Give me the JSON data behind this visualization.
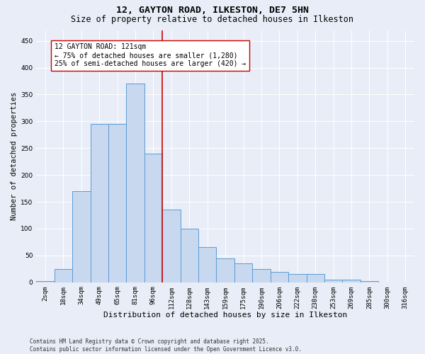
{
  "title": "12, GAYTON ROAD, ILKESTON, DE7 5HN",
  "subtitle": "Size of property relative to detached houses in Ilkeston",
  "xlabel": "Distribution of detached houses by size in Ilkeston",
  "ylabel": "Number of detached properties",
  "categories": [
    "2sqm",
    "18sqm",
    "34sqm",
    "49sqm",
    "65sqm",
    "81sqm",
    "96sqm",
    "112sqm",
    "128sqm",
    "143sqm",
    "159sqm",
    "175sqm",
    "190sqm",
    "206sqm",
    "222sqm",
    "238sqm",
    "253sqm",
    "269sqm",
    "285sqm",
    "300sqm",
    "316sqm"
  ],
  "values": [
    2,
    25,
    170,
    295,
    295,
    370,
    240,
    135,
    100,
    65,
    45,
    35,
    25,
    20,
    15,
    15,
    5,
    5,
    2,
    0,
    0
  ],
  "bar_color": "#c8d8ee",
  "bar_edge_color": "#5b9bd5",
  "bar_linewidth": 0.7,
  "annotation_text": "12 GAYTON ROAD: 121sqm\n← 75% of detached houses are smaller (1,280)\n25% of semi-detached houses are larger (420) →",
  "annotation_box_color": "#ffffff",
  "annotation_box_edgecolor": "#cc0000",
  "vline_x_index": 7,
  "vline_color": "#cc0000",
  "vline_linewidth": 1.2,
  "ylim": [
    0,
    470
  ],
  "yticks": [
    0,
    50,
    100,
    150,
    200,
    250,
    300,
    350,
    400,
    450
  ],
  "background_color": "#e8edf7",
  "grid_color": "#ffffff",
  "footnote": "Contains HM Land Registry data © Crown copyright and database right 2025.\nContains public sector information licensed under the Open Government Licence v3.0.",
  "title_fontsize": 9.5,
  "subtitle_fontsize": 8.5,
  "xlabel_fontsize": 8,
  "ylabel_fontsize": 7.5,
  "tick_fontsize": 6.5,
  "annotation_fontsize": 7,
  "footnote_fontsize": 5.5
}
